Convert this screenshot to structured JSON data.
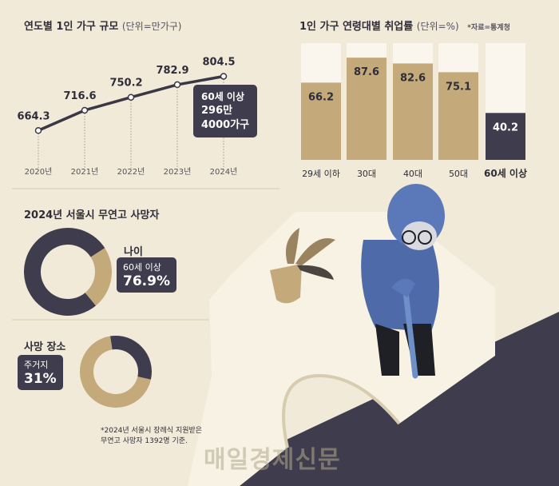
{
  "colors": {
    "background": "#f1ead9",
    "tan": "#c4aa7a",
    "dark": "#3f3d4d",
    "bar_empty": "#faf6ed",
    "line": "#3a3844"
  },
  "chart_data": [
    {
      "type": "line",
      "title": "연도별 1인 가구 규모",
      "unit": "(단위=만가구)",
      "categories": [
        "2020년",
        "2021년",
        "2022년",
        "2023년",
        "2024년"
      ],
      "values": [
        664.3,
        716.6,
        750.2,
        782.9,
        804.5
      ],
      "value_labels": [
        "664.3",
        "716.6",
        "750.2",
        "782.9",
        "804.5"
      ],
      "ylim": [
        640,
        820
      ],
      "callout": [
        "60세 이상",
        "296만",
        "4000가구"
      ]
    },
    {
      "type": "bar",
      "title": "1인 가구 연령대별 취업률",
      "unit": "(단위=%)",
      "source": "*자료=통계청",
      "categories": [
        "29세 이하",
        "30대",
        "40대",
        "50대",
        "60세 이상"
      ],
      "values": [
        66.2,
        87.6,
        82.6,
        75.1,
        40.2
      ],
      "value_labels": [
        "66.2",
        "87.6",
        "82.6",
        "75.1",
        "40.2"
      ],
      "ylim": [
        0,
        100
      ],
      "highlight_index": 4
    },
    {
      "type": "pie",
      "title": "2024년 서울시 무연고 사망자",
      "label": "나이",
      "slice_label": "60세 이상",
      "slice_value_label": "76.9%",
      "values": [
        76.9,
        23.1
      ],
      "slice_colors": [
        "#3f3d4d",
        "#c4aa7a"
      ]
    },
    {
      "type": "pie",
      "title": "사망 장소",
      "slice_label": "주거지",
      "slice_value_label": "31%",
      "values": [
        31,
        69
      ],
      "slice_colors": [
        "#3f3d4d",
        "#c4aa7a"
      ]
    }
  ],
  "footnote": [
    "*2024년 서울시 장례식 지원받은",
    "무연고 사망자 1392명 기준."
  ],
  "logo": "매일경제신문"
}
